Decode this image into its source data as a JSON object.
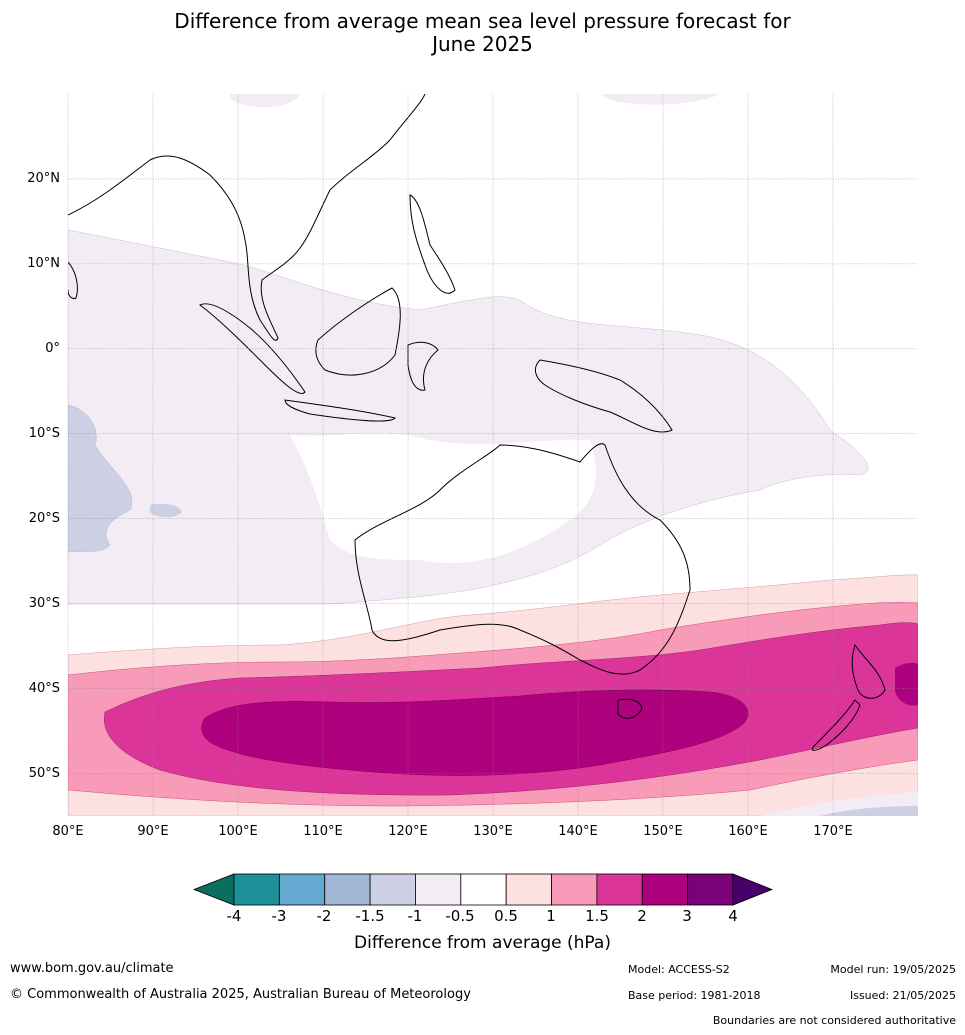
{
  "title": {
    "line1": "Difference from average mean sea level pressure forecast for",
    "line2": "June 2025"
  },
  "map": {
    "lat_labels": [
      "20°N",
      "10°N",
      "0°",
      "10°S",
      "20°S",
      "30°S",
      "40°S",
      "50°S"
    ],
    "lon_labels": [
      "80°E",
      "90°E",
      "100°E",
      "110°E",
      "120°E",
      "130°E",
      "140°E",
      "150°E",
      "160°E",
      "170°E"
    ],
    "lat_values": [
      20,
      10,
      0,
      -10,
      -20,
      -30,
      -40,
      -50
    ],
    "lon_values": [
      80,
      90,
      100,
      110,
      120,
      130,
      140,
      150,
      160,
      170
    ],
    "extent": {
      "lon": [
        80,
        180
      ],
      "lat": [
        -55,
        30
      ]
    }
  },
  "colorbar": {
    "title": "Difference from average (hPa)",
    "ticks": [
      "-4",
      "-3",
      "-2",
      "-1.5",
      "-1",
      "-0.5",
      "0.5",
      "1",
      "1.5",
      "2",
      "3",
      "4"
    ],
    "colors": [
      "#0b6e5e",
      "#1e9098",
      "#66a9d0",
      "#a2b6d6",
      "#cdd0e5",
      "#f3ecf5",
      "#ffffff",
      "#fde0e0",
      "#f79bb8",
      "#dc3599",
      "#ae017e",
      "#7a0177",
      "#49006a"
    ]
  },
  "footer": {
    "website": "www.bom.gov.au/climate",
    "copyright": "© Commonwealth of Australia 2025, Australian Bureau of Meteorology",
    "model": "Model: ACCESS-S2",
    "model_run": "Model run: 19/05/2025",
    "base_period": "Base period: 1981-2018",
    "issued": "Issued: 21/05/2025",
    "disclaimer": "Boundaries are not considered authoritative"
  }
}
